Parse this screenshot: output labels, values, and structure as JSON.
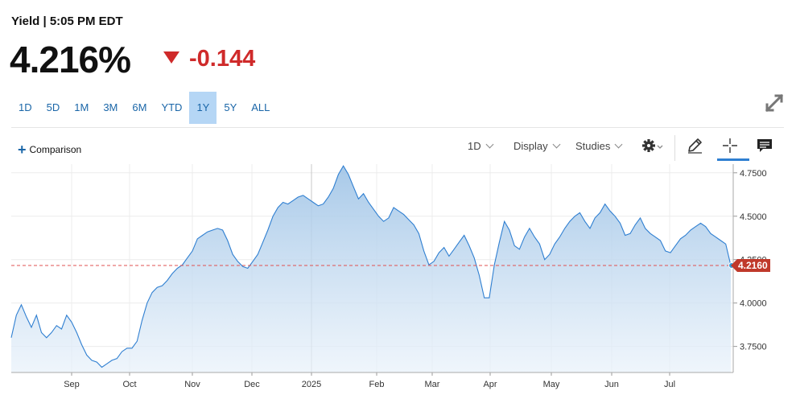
{
  "header": {
    "label": "Yield | 5:05 PM EDT",
    "price": "4.216%",
    "change": "-0.144",
    "change_color": "#cf2a2a"
  },
  "ranges": [
    "1D",
    "5D",
    "1M",
    "3M",
    "6M",
    "YTD",
    "1Y",
    "5Y",
    "ALL"
  ],
  "active_range": "1Y",
  "toolbar": {
    "comparison": "Comparison",
    "interval": "1D",
    "display": "Display",
    "studies": "Studies",
    "icons": [
      "gear-icon",
      "pencil-icon",
      "crosshair-icon",
      "comment-icon"
    ],
    "accent": "#2f7fd1"
  },
  "chart_data": {
    "type": "area",
    "series_color": "#2f7fd1",
    "x_labels": [
      "Sep",
      "Oct",
      "Nov",
      "Dec",
      "2025",
      "Feb",
      "Mar",
      "Apr",
      "May",
      "Jun",
      "Jul"
    ],
    "y_ticks": [
      "3.7500",
      "4.0000",
      "4.2500",
      "4.5000",
      "4.7500"
    ],
    "ylim": [
      3.6,
      4.8
    ],
    "last_value": "4.2160",
    "last_value_num": 4.216,
    "grid": true,
    "values": [
      3.8,
      3.93,
      3.99,
      3.92,
      3.86,
      3.93,
      3.83,
      3.8,
      3.83,
      3.87,
      3.85,
      3.93,
      3.89,
      3.83,
      3.76,
      3.7,
      3.67,
      3.66,
      3.63,
      3.65,
      3.67,
      3.68,
      3.72,
      3.74,
      3.74,
      3.78,
      3.9,
      4.0,
      4.06,
      4.09,
      4.1,
      4.13,
      4.17,
      4.2,
      4.22,
      4.26,
      4.3,
      4.37,
      4.39,
      4.41,
      4.42,
      4.43,
      4.42,
      4.36,
      4.28,
      4.24,
      4.21,
      4.2,
      4.24,
      4.28,
      4.35,
      4.42,
      4.5,
      4.55,
      4.58,
      4.57,
      4.59,
      4.61,
      4.62,
      4.6,
      4.58,
      4.56,
      4.57,
      4.61,
      4.66,
      4.74,
      4.79,
      4.74,
      4.67,
      4.6,
      4.63,
      4.58,
      4.54,
      4.5,
      4.47,
      4.49,
      4.55,
      4.53,
      4.51,
      4.48,
      4.45,
      4.4,
      4.3,
      4.22,
      4.24,
      4.29,
      4.32,
      4.27,
      4.31,
      4.35,
      4.39,
      4.33,
      4.26,
      4.16,
      4.03,
      4.03,
      4.22,
      4.35,
      4.47,
      4.42,
      4.33,
      4.31,
      4.38,
      4.43,
      4.38,
      4.34,
      4.25,
      4.28,
      4.34,
      4.38,
      4.43,
      4.47,
      4.5,
      4.52,
      4.47,
      4.43,
      4.49,
      4.52,
      4.57,
      4.53,
      4.5,
      4.46,
      4.39,
      4.4,
      4.45,
      4.49,
      4.43,
      4.4,
      4.38,
      4.36,
      4.3,
      4.29,
      4.33,
      4.37,
      4.39,
      4.42,
      4.44,
      4.46,
      4.44,
      4.4,
      4.38,
      4.36,
      4.34,
      4.216
    ]
  }
}
